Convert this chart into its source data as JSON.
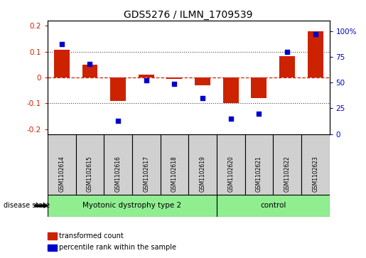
{
  "title": "GDS5276 / ILMN_1709539",
  "samples": [
    "GSM1102614",
    "GSM1102615",
    "GSM1102616",
    "GSM1102617",
    "GSM1102618",
    "GSM1102619",
    "GSM1102620",
    "GSM1102621",
    "GSM1102622",
    "GSM1102623"
  ],
  "transformed_count": [
    0.107,
    0.048,
    -0.09,
    0.012,
    -0.005,
    -0.03,
    -0.1,
    -0.08,
    0.082,
    0.18
  ],
  "percentile_rank": [
    87,
    68,
    13,
    52,
    49,
    35,
    15,
    20,
    80,
    97
  ],
  "groups": [
    {
      "label": "Myotonic dystrophy type 2",
      "start": 0,
      "end": 6,
      "color": "#90ee90"
    },
    {
      "label": "control",
      "start": 6,
      "end": 10,
      "color": "#90ee90"
    }
  ],
  "disease_state_label": "disease state",
  "ylim_left": [
    -0.22,
    0.22
  ],
  "ylim_right": [
    0,
    110
  ],
  "yticks_left": [
    -0.2,
    -0.1,
    0.0,
    0.1,
    0.2
  ],
  "yticks_right": [
    0,
    25,
    50,
    75,
    100
  ],
  "ytick_labels_right": [
    "0",
    "25",
    "50",
    "75",
    "100%"
  ],
  "bar_color": "#cc2200",
  "dot_color": "#0000cc",
  "zero_line_color": "#cc2200",
  "grid_color": "#444444",
  "box_fill_color": "#d0d0d0",
  "legend_bar_label": "transformed count",
  "legend_dot_label": "percentile rank within the sample"
}
